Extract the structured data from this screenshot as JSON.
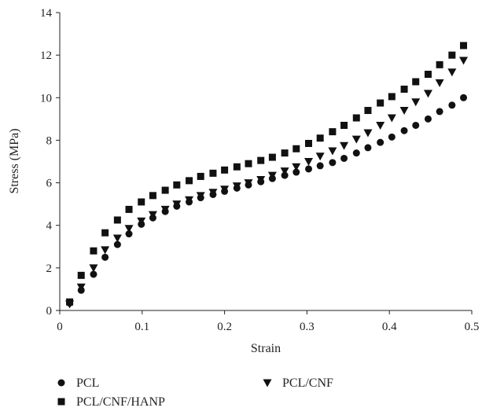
{
  "chart_data": {
    "type": "scatter",
    "xlabel": "Strain",
    "ylabel": "Stress (MPa)",
    "xlim": [
      0,
      0.5
    ],
    "ylim": [
      0,
      14
    ],
    "x_ticks": [
      0,
      0.1,
      0.2,
      0.3,
      0.4,
      0.5
    ],
    "x_tick_labels": [
      "0",
      "0.1",
      "0.2",
      "0.3",
      "0.4",
      "0.5"
    ],
    "y_ticks": [
      0,
      2,
      4,
      6,
      8,
      10,
      12,
      14
    ],
    "y_tick_labels": [
      "0",
      "2",
      "4",
      "6",
      "8",
      "10",
      "12",
      "14"
    ],
    "grid": false,
    "legend_position": "bottom",
    "x": [
      0.012,
      0.026,
      0.041,
      0.055,
      0.07,
      0.084,
      0.099,
      0.113,
      0.128,
      0.142,
      0.157,
      0.171,
      0.186,
      0.2,
      0.215,
      0.229,
      0.244,
      0.258,
      0.273,
      0.287,
      0.302,
      0.316,
      0.331,
      0.345,
      0.36,
      0.374,
      0.389,
      0.403,
      0.418,
      0.432,
      0.447,
      0.461,
      0.476,
      0.49
    ],
    "series": [
      {
        "name": "PCL",
        "marker": "circle",
        "color": "#111111",
        "values": [
          0.35,
          0.95,
          1.7,
          2.5,
          3.1,
          3.6,
          4.05,
          4.35,
          4.65,
          4.9,
          5.1,
          5.3,
          5.45,
          5.6,
          5.75,
          5.9,
          6.05,
          6.2,
          6.35,
          6.5,
          6.65,
          6.8,
          6.95,
          7.15,
          7.4,
          7.65,
          7.9,
          8.15,
          8.45,
          8.7,
          9.0,
          9.35,
          9.65,
          10.0
        ]
      },
      {
        "name": "PCL/CNF",
        "marker": "triangle-down",
        "color": "#111111",
        "values": [
          0.3,
          1.1,
          2.0,
          2.85,
          3.4,
          3.85,
          4.2,
          4.5,
          4.75,
          5.0,
          5.2,
          5.4,
          5.55,
          5.7,
          5.85,
          6.0,
          6.15,
          6.35,
          6.55,
          6.75,
          7.0,
          7.25,
          7.5,
          7.75,
          8.05,
          8.35,
          8.7,
          9.05,
          9.4,
          9.8,
          10.2,
          10.7,
          11.2,
          11.75
        ]
      },
      {
        "name": "PCL/CNF/HANP",
        "marker": "square",
        "color": "#111111",
        "values": [
          0.4,
          1.65,
          2.8,
          3.65,
          4.25,
          4.75,
          5.1,
          5.4,
          5.65,
          5.9,
          6.1,
          6.3,
          6.45,
          6.6,
          6.75,
          6.9,
          7.05,
          7.2,
          7.4,
          7.6,
          7.85,
          8.1,
          8.4,
          8.7,
          9.05,
          9.4,
          9.75,
          10.05,
          10.4,
          10.75,
          11.1,
          11.55,
          12.0,
          12.45
        ]
      }
    ]
  }
}
